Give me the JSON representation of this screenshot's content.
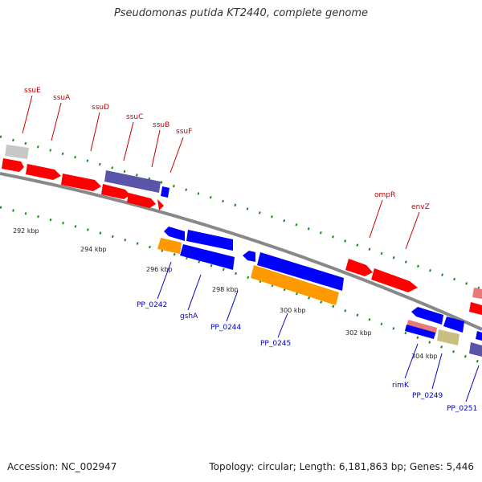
{
  "title": "Pseudomonas putida KT2440, complete genome",
  "footer": {
    "accession": "Accession: NC_002947",
    "summary": "Topology: circular; Length: 6,181,863 bp; Genes: 5,446"
  },
  "colors": {
    "forward": "#ff0000",
    "reverse": "#0000ff",
    "forward_label": "#cc0000",
    "reverse_label": "#0000cc",
    "backbone": "#888888",
    "tick": "#1a8a1a",
    "orange": "#ff9900",
    "purple": "#5a55a8",
    "gray": "#c8c8c8",
    "pink": "#e87a7a",
    "olive": "#c8c080"
  },
  "scale_labels": [
    "292 kbp",
    "294 kbp",
    "296 kbp",
    "298 kbp",
    "300 kbp",
    "302 kbp",
    "304 kbp"
  ],
  "forward_labels": [
    "ssuE",
    "ssuA",
    "ssuD",
    "ssuC",
    "ssuB",
    "ssuF",
    "ompR",
    "envZ"
  ],
  "reverse_labels": [
    "PP_0242",
    "gshA",
    "PP_0244",
    "PP_0245",
    "rimK",
    "PP_0249",
    "PP_0251"
  ]
}
